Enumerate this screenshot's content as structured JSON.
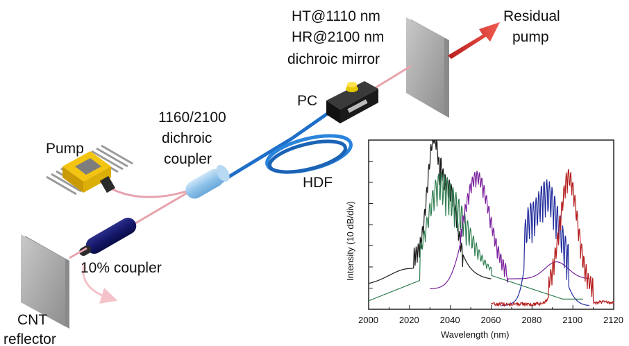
{
  "labels": {
    "mirror_line1": "HT@1110 nm",
    "mirror_line2": "HR@2100 nm",
    "mirror_line3": "dichroic mirror",
    "residual_line1": "Residual",
    "residual_line2": "pump",
    "pc": "PC",
    "dichroic_line1": "1160/2100",
    "dichroic_line2": "dichroic",
    "dichroic_line3": "coupler",
    "pump": "Pump",
    "hdf": "HDF",
    "coupler": "10% coupler",
    "cnt_line1": "CNT",
    "cnt_line2": "reflector"
  },
  "colors": {
    "fiber_blue": "#1f6fc9",
    "fiber_pink": "#e7a3ad",
    "pump_gold": "#f3c410",
    "arrow_red": "#e0403a",
    "mirror_gray": "#a9a9a9"
  },
  "chart_data": {
    "type": "line",
    "xlabel": "Wavelength (nm)",
    "ylabel": "Intensity (10 dB/div)",
    "xlim": [
      2000,
      2120
    ],
    "xticks": [
      "2000",
      "2020",
      "2040",
      "2060",
      "2080",
      "2100",
      "2120"
    ],
    "grid": false,
    "series": [
      {
        "color": "#1a1a1a",
        "peak": 2032,
        "shape": "black"
      },
      {
        "color": "#2e7d4f",
        "peak": 2040,
        "shape": "green"
      },
      {
        "color": "#7a1f9c",
        "peak": 2053,
        "shape": "purple"
      },
      {
        "color": "#1f2a9c",
        "peak": 2087,
        "shape": "blue"
      },
      {
        "color": "#b51f1f",
        "peak": 2098,
        "shape": "red"
      }
    ]
  }
}
